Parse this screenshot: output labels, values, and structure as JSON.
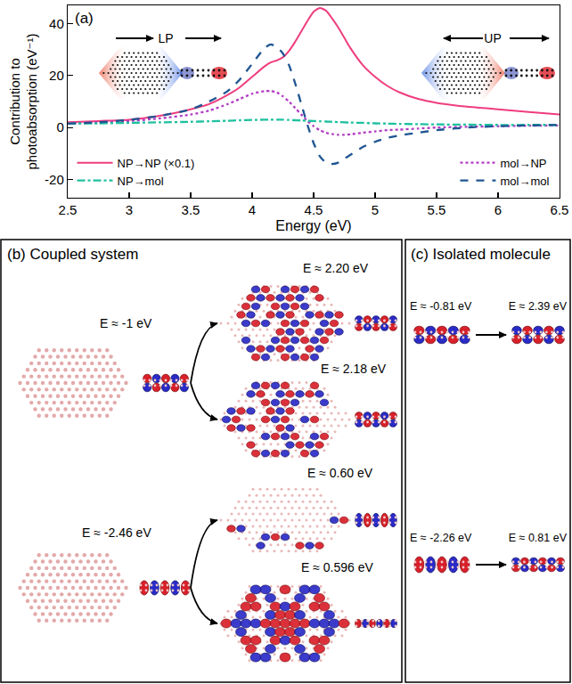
{
  "chart_data": {
    "type": "line",
    "annotations": [
      "(a)",
      "LP",
      "UP"
    ],
    "x_label": "Energy (eV)",
    "y_label": "Contribution to photoabsorption (eV⁻¹)",
    "x": [
      2.5,
      2.75,
      3.0,
      3.25,
      3.5,
      3.65,
      3.8,
      3.9,
      4.0,
      4.1,
      4.15,
      4.2,
      4.25,
      4.3,
      4.35,
      4.4,
      4.45,
      4.5,
      4.55,
      4.6,
      4.65,
      4.7,
      4.75,
      4.8,
      4.9,
      5.0,
      5.1,
      5.2,
      5.35,
      5.5,
      5.75,
      6.0,
      6.25,
      6.5
    ],
    "series": [
      {
        "name": "NP→NP (×0.1)",
        "color": "#ef3d7e",
        "line_style": "solid",
        "values": [
          2,
          2.5,
          3,
          4.5,
          7,
          9,
          12.5,
          15.5,
          19.5,
          23.5,
          25,
          25.8,
          27,
          29.5,
          33,
          37,
          41,
          44.5,
          46,
          45,
          42,
          38.5,
          34.5,
          30.5,
          24,
          19.5,
          16,
          13.5,
          11,
          9.5,
          8,
          7,
          6,
          5
        ]
      },
      {
        "name": "mol→NP",
        "color": "#b33cc4",
        "line_style": "dotted",
        "values": [
          1.5,
          2,
          2.5,
          3.5,
          5,
          6.5,
          9,
          11,
          13,
          14,
          14,
          13.5,
          12,
          10,
          7.5,
          5,
          2.5,
          0.5,
          -1,
          -2,
          -2.5,
          -2.8,
          -2.8,
          -2.6,
          -2,
          -1.5,
          -1,
          -0.8,
          -0.4,
          0,
          0.3,
          0.5,
          0.7,
          0.8
        ]
      },
      {
        "name": "NP→mol",
        "color": "#1fc0a0",
        "line_style": "dashdot",
        "values": [
          1.5,
          1.6,
          1.8,
          2,
          2.2,
          2.4,
          2.6,
          2.8,
          2.9,
          3,
          3,
          3,
          3,
          2.9,
          2.8,
          2.7,
          2.6,
          2.5,
          2.4,
          2.3,
          2.2,
          2.1,
          2,
          1.9,
          1.8,
          1.6,
          1.5,
          1.4,
          1.3,
          1.2,
          1.1,
          1,
          1,
          1
        ]
      },
      {
        "name": "mol→mol",
        "color": "#1f5591",
        "line_style": "dashed",
        "values": [
          1.5,
          2,
          3,
          4.5,
          7,
          10,
          14,
          18.5,
          24.5,
          30.5,
          32,
          31,
          28.5,
          24,
          17,
          9,
          1,
          -6,
          -11,
          -13.5,
          -14,
          -13.5,
          -12,
          -10.5,
          -7.5,
          -5.5,
          -4,
          -3,
          -2,
          -1,
          0,
          0.5,
          0.8,
          1
        ]
      }
    ],
    "xlim": [
      2.5,
      6.5
    ],
    "xticks": [
      2.5,
      3,
      3.5,
      4,
      4.5,
      5,
      5.5,
      6,
      6.5
    ],
    "ylim": [
      -27,
      47
    ],
    "yticks": [
      -20,
      0,
      20,
      40
    ],
    "legend": "bottom",
    "grid": false
  },
  "panel_b": {
    "label": "(b)",
    "title": "Coupled system",
    "groups": [
      {
        "initial": "E ≈ -1 eV",
        "finals": [
          "E ≈ 2.20 eV",
          "E ≈ 2.18 eV"
        ]
      },
      {
        "initial": "E ≈ -2.46 eV",
        "finals": [
          "E ≈ 0.60 eV",
          "E ≈ 0.596 eV"
        ]
      }
    ]
  },
  "panel_c": {
    "label": "(c)",
    "title": "Isolated molecule",
    "pairs": [
      {
        "initial": "E ≈ -0.81 eV",
        "final": "E ≈ 2.39 eV"
      },
      {
        "initial": "E ≈ -2.26 eV",
        "final": "E ≈ 0.81 eV"
      }
    ]
  }
}
